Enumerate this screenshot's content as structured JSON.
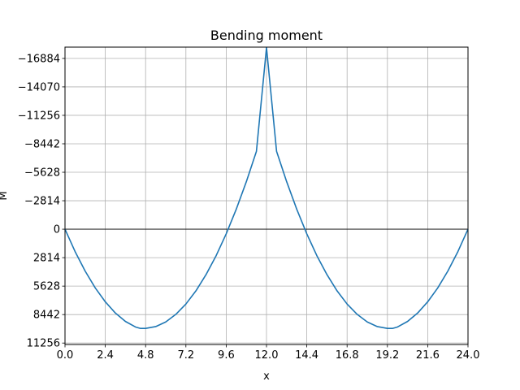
{
  "chart_data": {
    "type": "line",
    "title": "Bending moment",
    "xlabel": "x",
    "ylabel": "M",
    "xlim": [
      0,
      24
    ],
    "ylim": [
      11400,
      -18000
    ],
    "y_inverted": true,
    "grid": true,
    "zero_line": true,
    "x_ticks": [
      0,
      2.4,
      4.8,
      7.2,
      9.6,
      12.0,
      14.4,
      16.8,
      19.2,
      21.6,
      24.0
    ],
    "x_tick_labels": [
      "0.0",
      "2.4",
      "4.8",
      "7.2",
      "9.6",
      "12.0",
      "14.4",
      "16.8",
      "19.2",
      "21.6",
      "24.0"
    ],
    "y_ticks": [
      -16884,
      -14070,
      -11256,
      -8442,
      -5628,
      -2814,
      0,
      2814,
      5628,
      8442,
      11256
    ],
    "y_tick_labels": [
      "−16884",
      "−14070",
      "−11256",
      "−8442",
      "−5628",
      "−2814",
      "0",
      "2814",
      "5628",
      "8442",
      "11256"
    ],
    "series": [
      {
        "color": "#1f77b4",
        "x": [
          0,
          0.6,
          1.2,
          1.8,
          2.4,
          3.0,
          3.6,
          4.2,
          4.5,
          4.8,
          5.4,
          6.0,
          6.6,
          7.2,
          7.8,
          8.4,
          9.0,
          9.6,
          10.2,
          10.8,
          11.4,
          12.0,
          12.6,
          13.2,
          13.8,
          14.4,
          15.0,
          15.6,
          16.2,
          16.8,
          17.4,
          18.0,
          18.6,
          19.2,
          19.5,
          19.8,
          20.4,
          21.0,
          21.6,
          22.2,
          22.8,
          23.4,
          24.0
        ],
        "y": [
          0,
          2210,
          4140,
          5800,
          7180,
          8290,
          9120,
          9670,
          9810,
          9810,
          9630,
          9170,
          8420,
          7400,
          6090,
          4490,
          2620,
          460,
          -1980,
          -4700,
          -7700,
          -17950,
          -7700,
          -4700,
          -1980,
          460,
          2620,
          4490,
          6090,
          7400,
          8420,
          9170,
          9630,
          9810,
          9810,
          9670,
          9120,
          8290,
          7180,
          5800,
          4140,
          2210,
          0
        ]
      }
    ]
  }
}
